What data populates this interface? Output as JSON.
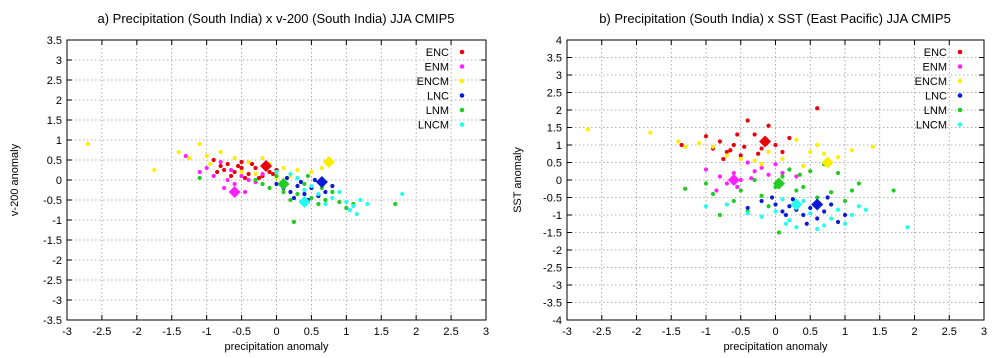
{
  "palette": {
    "ENC": "#e8000b",
    "ENM": "#ff22ff",
    "ENCM": "#ffee00",
    "LNC": "#0a1ad8",
    "LNM": "#22cc22",
    "LNCM": "#22ffee"
  },
  "chart_data": [
    {
      "type": "scatter",
      "title": "a) Precipitation (South India) x v-200 (South India) JJA CMIP5",
      "xlabel": "precipitation anomaly",
      "ylabel": "v-200 anomaly",
      "xlim": [
        -3,
        3
      ],
      "ylim": [
        -3.5,
        3.5
      ],
      "xticks": [
        "-3",
        "-2.5",
        "-2",
        "-1.5",
        "-1",
        "-0.5",
        "0",
        "0.5",
        "1",
        "1.5",
        "2",
        "2.5",
        "3"
      ],
      "yticks": [
        "-3.5",
        "-3",
        "-2.5",
        "-2",
        "-1.5",
        "-1",
        "-0.5",
        "0",
        "0.5",
        "1",
        "1.5",
        "2",
        "2.5",
        "3",
        "3.5"
      ],
      "grid": true,
      "legend": "top-right",
      "series": [
        {
          "name": "ENC",
          "color_key": "ENC",
          "points": [
            [
              -0.9,
              0.5
            ],
            [
              -0.8,
              0.35
            ],
            [
              -0.7,
              0.4
            ],
            [
              -0.6,
              0.2
            ],
            [
              -0.5,
              0.3
            ],
            [
              -0.4,
              0.15
            ],
            [
              -0.3,
              0.3
            ],
            [
              -0.2,
              0.1
            ],
            [
              -0.1,
              0.2
            ],
            [
              0.0,
              0.25
            ],
            [
              -0.65,
              0.1
            ],
            [
              -0.45,
              0.05
            ],
            [
              -0.35,
              0.4
            ],
            [
              -0.55,
              0.35
            ],
            [
              -0.75,
              0.25
            ],
            [
              -0.25,
              0.05
            ],
            [
              -0.15,
              0.3
            ],
            [
              -0.85,
              0.2
            ],
            [
              -0.05,
              0.15
            ],
            [
              -0.5,
              0.45
            ]
          ],
          "mean": [
            -0.15,
            0.35
          ]
        },
        {
          "name": "ENM",
          "color_key": "ENM",
          "points": [
            [
              -1.3,
              0.6
            ],
            [
              -1.0,
              0.3
            ],
            [
              -0.9,
              0.1
            ],
            [
              -0.8,
              0.45
            ],
            [
              -0.7,
              0.0
            ],
            [
              -0.6,
              -0.1
            ],
            [
              -0.5,
              0.1
            ],
            [
              -0.4,
              0.0
            ],
            [
              -0.3,
              -0.05
            ],
            [
              -0.2,
              0.15
            ],
            [
              -1.1,
              0.2
            ],
            [
              -0.75,
              -0.2
            ],
            [
              -0.45,
              -0.3
            ],
            [
              -0.65,
              0.25
            ]
          ],
          "mean": [
            -0.6,
            -0.3
          ]
        },
        {
          "name": "ENCM",
          "color_key": "ENCM",
          "points": [
            [
              -2.7,
              0.9
            ],
            [
              -1.75,
              0.25
            ],
            [
              -1.4,
              0.7
            ],
            [
              -1.25,
              0.55
            ],
            [
              -1.1,
              0.9
            ],
            [
              -1.0,
              0.6
            ],
            [
              -0.8,
              0.7
            ],
            [
              -0.6,
              0.55
            ],
            [
              -0.4,
              0.45
            ],
            [
              -0.2,
              0.55
            ],
            [
              -0.1,
              0.4
            ],
            [
              0.1,
              0.3
            ],
            [
              0.3,
              0.25
            ],
            [
              0.5,
              0.2
            ],
            [
              0.65,
              0.3
            ],
            [
              -0.5,
              0.2
            ],
            [
              -0.3,
              0.15
            ],
            [
              0.0,
              0.05
            ],
            [
              -0.95,
              0.4
            ],
            [
              0.2,
              0.1
            ]
          ],
          "mean": [
            0.75,
            0.45
          ]
        },
        {
          "name": "LNC",
          "color_key": "LNC",
          "points": [
            [
              0.0,
              -0.1
            ],
            [
              0.1,
              -0.2
            ],
            [
              0.2,
              -0.3
            ],
            [
              0.3,
              -0.15
            ],
            [
              0.4,
              -0.35
            ],
            [
              0.5,
              -0.2
            ],
            [
              0.6,
              -0.4
            ],
            [
              0.7,
              -0.3
            ],
            [
              0.35,
              -0.05
            ],
            [
              0.15,
              0.05
            ],
            [
              0.45,
              -0.5
            ],
            [
              0.8,
              -0.15
            ],
            [
              0.25,
              -0.45
            ],
            [
              0.55,
              0.0
            ]
          ],
          "mean": [
            0.65,
            -0.05
          ]
        },
        {
          "name": "LNM",
          "color_key": "LNM",
          "points": [
            [
              -1.1,
              0.05
            ],
            [
              -0.3,
              0.0
            ],
            [
              -0.2,
              -0.1
            ],
            [
              0.0,
              0.1
            ],
            [
              0.1,
              -0.3
            ],
            [
              0.2,
              -0.5
            ],
            [
              0.3,
              -0.35
            ],
            [
              0.4,
              -0.1
            ],
            [
              0.5,
              -0.45
            ],
            [
              0.6,
              -0.6
            ],
            [
              0.7,
              -0.5
            ],
            [
              0.8,
              -0.3
            ],
            [
              0.9,
              -0.55
            ],
            [
              1.0,
              -0.7
            ],
            [
              1.1,
              -0.6
            ],
            [
              1.7,
              -0.6
            ],
            [
              0.25,
              -1.05
            ],
            [
              -0.1,
              -0.2
            ],
            [
              0.45,
              0.1
            ],
            [
              0.65,
              -0.2
            ]
          ],
          "mean": [
            0.1,
            -0.1
          ]
        },
        {
          "name": "LNCM",
          "color_key": "LNCM",
          "points": [
            [
              0.0,
              0.2
            ],
            [
              0.2,
              0.15
            ],
            [
              0.4,
              -0.25
            ],
            [
              0.6,
              -0.35
            ],
            [
              0.8,
              -0.45
            ],
            [
              0.9,
              -0.3
            ],
            [
              1.0,
              -0.55
            ],
            [
              1.05,
              -0.75
            ],
            [
              1.1,
              -0.65
            ],
            [
              1.2,
              -0.5
            ],
            [
              1.3,
              -0.6
            ],
            [
              1.8,
              -0.35
            ],
            [
              0.5,
              -0.15
            ],
            [
              0.7,
              -0.6
            ],
            [
              1.15,
              -0.85
            ],
            [
              0.3,
              0.05
            ]
          ],
          "mean": [
            0.4,
            -0.55
          ]
        }
      ]
    },
    {
      "type": "scatter",
      "title": "b) Precipitation (South India) x SST (East Pacific) JJA CMIP5",
      "xlabel": "precipitation anomaly",
      "ylabel": "SST anomaly",
      "xlim": [
        -3,
        3
      ],
      "ylim": [
        -4,
        4
      ],
      "xticks": [
        "-3",
        "-2.5",
        "-2",
        "-1.5",
        "-1",
        "-0.5",
        "0",
        "0.5",
        "1",
        "1.5",
        "2",
        "2.5",
        "3"
      ],
      "yticks": [
        "-4",
        "-3.5",
        "-3",
        "-2.5",
        "-2",
        "-1.5",
        "-1",
        "-0.5",
        "0",
        "0.5",
        "1",
        "1.5",
        "2",
        "2.5",
        "3",
        "3.5",
        "4"
      ],
      "grid": true,
      "legend": "top-right",
      "series": [
        {
          "name": "ENC",
          "color_key": "ENC",
          "points": [
            [
              -1.35,
              1.0
            ],
            [
              -1.0,
              1.25
            ],
            [
              -0.9,
              0.9
            ],
            [
              -0.8,
              1.1
            ],
            [
              -0.7,
              0.8
            ],
            [
              -0.6,
              1.0
            ],
            [
              -0.5,
              0.7
            ],
            [
              -0.4,
              1.7
            ],
            [
              -0.3,
              1.3
            ],
            [
              -0.2,
              0.9
            ],
            [
              -0.1,
              1.55
            ],
            [
              0.0,
              1.0
            ],
            [
              0.1,
              0.8
            ],
            [
              -0.75,
              0.6
            ],
            [
              -0.55,
              1.3
            ],
            [
              0.6,
              2.05
            ],
            [
              -0.45,
              0.95
            ],
            [
              -0.25,
              0.75
            ],
            [
              0.2,
              1.2
            ],
            [
              -0.65,
              0.85
            ]
          ],
          "mean": [
            -0.15,
            1.1
          ]
        },
        {
          "name": "ENM",
          "color_key": "ENM",
          "points": [
            [
              -1.0,
              0.3
            ],
            [
              -0.8,
              0.1
            ],
            [
              -0.7,
              -0.1
            ],
            [
              -0.6,
              0.2
            ],
            [
              -0.5,
              0.0
            ],
            [
              -0.4,
              0.5
            ],
            [
              -0.3,
              0.25
            ],
            [
              -0.2,
              0.35
            ],
            [
              -0.1,
              0.15
            ],
            [
              0.0,
              0.45
            ],
            [
              0.2,
              0.3
            ],
            [
              0.3,
              0.1
            ],
            [
              -0.55,
              -0.2
            ],
            [
              -0.35,
              0.05
            ],
            [
              0.1,
              0.2
            ],
            [
              -0.85,
              -0.3
            ]
          ],
          "mean": [
            -0.6,
            0.0
          ]
        },
        {
          "name": "ENCM",
          "color_key": "ENCM",
          "points": [
            [
              -2.7,
              1.45
            ],
            [
              -1.8,
              1.35
            ],
            [
              -1.4,
              1.1
            ],
            [
              -1.3,
              0.95
            ],
            [
              -1.1,
              1.05
            ],
            [
              -0.9,
              0.95
            ],
            [
              -0.7,
              0.7
            ],
            [
              -0.5,
              0.6
            ],
            [
              -0.3,
              0.55
            ],
            [
              -0.1,
              0.8
            ],
            [
              0.1,
              0.6
            ],
            [
              0.3,
              1.15
            ],
            [
              0.5,
              0.8
            ],
            [
              0.7,
              0.75
            ],
            [
              0.9,
              0.65
            ],
            [
              1.1,
              0.85
            ],
            [
              1.4,
              0.95
            ],
            [
              0.4,
              0.4
            ],
            [
              -0.2,
              0.45
            ],
            [
              0.6,
              1.0
            ]
          ],
          "mean": [
            0.75,
            0.5
          ]
        },
        {
          "name": "LNC",
          "color_key": "LNC",
          "points": [
            [
              -0.4,
              -0.8
            ],
            [
              -0.2,
              -0.6
            ],
            [
              0.0,
              -0.7
            ],
            [
              0.1,
              -0.9
            ],
            [
              0.2,
              -0.75
            ],
            [
              0.3,
              -0.85
            ],
            [
              0.4,
              -1.0
            ],
            [
              0.5,
              -0.8
            ],
            [
              0.6,
              -1.1
            ],
            [
              0.7,
              -0.9
            ],
            [
              0.8,
              -0.7
            ],
            [
              0.9,
              -1.2
            ],
            [
              1.0,
              -1.0
            ],
            [
              -0.05,
              -0.5
            ],
            [
              0.25,
              -0.55
            ],
            [
              0.45,
              -1.25
            ],
            [
              0.75,
              -0.5
            ],
            [
              0.15,
              -1.0
            ]
          ],
          "mean": [
            0.6,
            -0.7
          ]
        },
        {
          "name": "LNM",
          "color_key": "LNM",
          "points": [
            [
              -1.3,
              -0.25
            ],
            [
              -1.0,
              -0.1
            ],
            [
              -0.9,
              -0.4
            ],
            [
              -0.8,
              -1.0
            ],
            [
              -0.6,
              -0.6
            ],
            [
              -0.5,
              -0.3
            ],
            [
              -0.4,
              -0.9
            ],
            [
              -0.3,
              0.0
            ],
            [
              -0.2,
              -0.45
            ],
            [
              0.0,
              -0.2
            ],
            [
              0.1,
              0.1
            ],
            [
              0.2,
              0.3
            ],
            [
              0.3,
              -0.3
            ],
            [
              0.4,
              -0.2
            ],
            [
              0.5,
              0.25
            ],
            [
              0.6,
              -0.5
            ],
            [
              0.7,
              0.45
            ],
            [
              0.8,
              -0.35
            ],
            [
              0.9,
              0.2
            ],
            [
              1.0,
              -0.6
            ],
            [
              1.1,
              -0.3
            ],
            [
              1.2,
              -0.1
            ],
            [
              1.7,
              -0.3
            ],
            [
              0.05,
              -1.5
            ],
            [
              -0.1,
              -0.75
            ],
            [
              0.35,
              0.15
            ]
          ],
          "mean": [
            0.05,
            -0.1
          ]
        },
        {
          "name": "LNCM",
          "color_key": "LNCM",
          "points": [
            [
              -1.0,
              -0.75
            ],
            [
              -0.7,
              -0.7
            ],
            [
              -0.4,
              -0.95
            ],
            [
              -0.2,
              -1.05
            ],
            [
              0.0,
              -0.9
            ],
            [
              0.2,
              -1.15
            ],
            [
              0.3,
              -1.35
            ],
            [
              0.5,
              -0.95
            ],
            [
              0.6,
              -1.4
            ],
            [
              0.7,
              -1.3
            ],
            [
              0.8,
              -1.1
            ],
            [
              0.9,
              -0.85
            ],
            [
              1.0,
              -1.25
            ],
            [
              1.2,
              -0.75
            ],
            [
              1.3,
              -0.85
            ],
            [
              1.9,
              -1.35
            ],
            [
              0.4,
              -0.6
            ],
            [
              0.1,
              -0.55
            ],
            [
              1.1,
              -1.0
            ],
            [
              0.15,
              -1.25
            ]
          ],
          "mean": [
            0.3,
            -0.7
          ]
        }
      ]
    }
  ]
}
